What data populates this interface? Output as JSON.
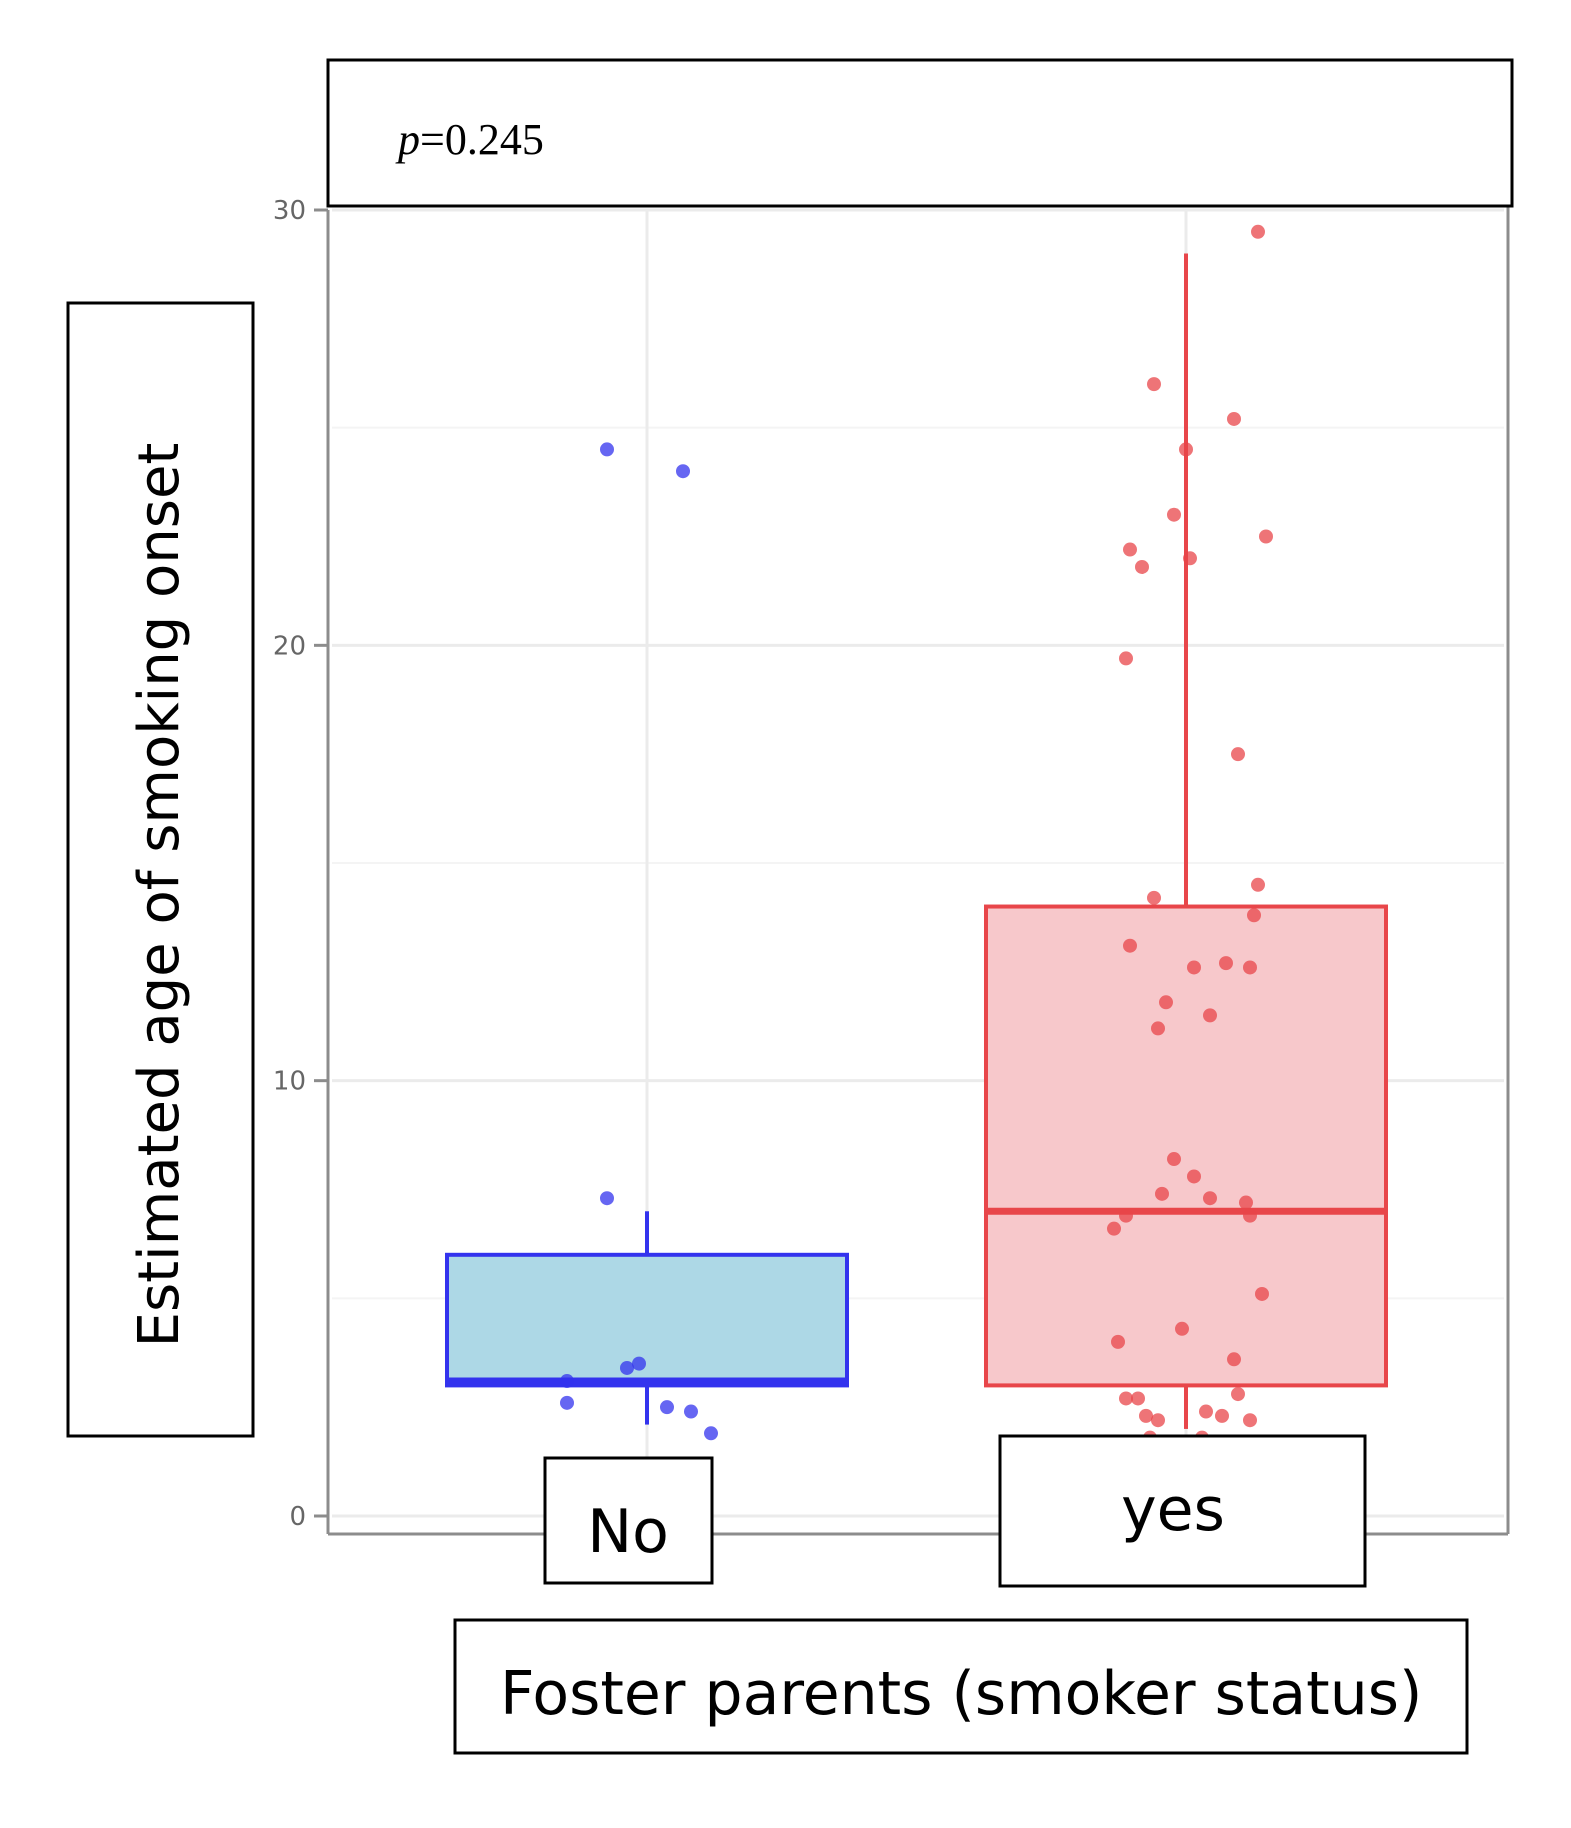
{
  "chart_data": {
    "type": "box",
    "xlabel": "Foster parents (smoker status)",
    "ylabel": "Estimated age of smoking onset",
    "annotation_prefix": "p",
    "annotation_value": "=0.245",
    "ylim": [
      0,
      30
    ],
    "yticks": [
      0,
      10,
      20,
      30
    ],
    "grid": true,
    "categories": [
      "No",
      "yes"
    ],
    "series": [
      {
        "color": "#3333ee",
        "fill": "#add8e6",
        "q1": 3.0,
        "median": 3.1,
        "q3": 6.0,
        "whisker_low": 2.1,
        "whisker_high": 7.0,
        "points": [
          {
            "jitter": -0.1,
            "y": 24.5
          },
          {
            "jitter": 0.09,
            "y": 24.0
          },
          {
            "jitter": -0.1,
            "y": 7.3
          },
          {
            "jitter": -0.2,
            "y": 2.6
          },
          {
            "jitter": -0.05,
            "y": 3.4
          },
          {
            "jitter": -0.02,
            "y": 3.5
          },
          {
            "jitter": 0.05,
            "y": 2.5
          },
          {
            "jitter": 0.11,
            "y": 2.4
          },
          {
            "jitter": 0.16,
            "y": 1.9
          },
          {
            "jitter": -0.2,
            "y": 3.1
          }
        ]
      },
      {
        "color": "#e8464a",
        "fill": "#f7c8cb",
        "q1": 3.0,
        "median": 7.0,
        "q3": 14.0,
        "whisker_low": 2.0,
        "whisker_high": 29.0,
        "points": [
          {
            "jitter": 0.18,
            "y": 29.5
          },
          {
            "jitter": -0.08,
            "y": 26.0
          },
          {
            "jitter": 0.12,
            "y": 25.2
          },
          {
            "jitter": 0.0,
            "y": 24.5
          },
          {
            "jitter": -0.03,
            "y": 23.0
          },
          {
            "jitter": 0.2,
            "y": 22.5
          },
          {
            "jitter": -0.14,
            "y": 22.2
          },
          {
            "jitter": -0.11,
            "y": 21.8
          },
          {
            "jitter": 0.01,
            "y": 22.0
          },
          {
            "jitter": -0.15,
            "y": 19.7
          },
          {
            "jitter": 0.13,
            "y": 17.5
          },
          {
            "jitter": -0.08,
            "y": 14.2
          },
          {
            "jitter": 0.18,
            "y": 14.5
          },
          {
            "jitter": 0.17,
            "y": 13.8
          },
          {
            "jitter": -0.14,
            "y": 13.1
          },
          {
            "jitter": 0.02,
            "y": 12.6
          },
          {
            "jitter": 0.1,
            "y": 12.7
          },
          {
            "jitter": 0.16,
            "y": 12.6
          },
          {
            "jitter": -0.05,
            "y": 11.8
          },
          {
            "jitter": 0.06,
            "y": 11.5
          },
          {
            "jitter": -0.07,
            "y": 11.2
          },
          {
            "jitter": -0.03,
            "y": 8.2
          },
          {
            "jitter": 0.02,
            "y": 7.8
          },
          {
            "jitter": -0.06,
            "y": 7.4
          },
          {
            "jitter": 0.06,
            "y": 7.3
          },
          {
            "jitter": 0.15,
            "y": 7.2
          },
          {
            "jitter": -0.15,
            "y": 6.9
          },
          {
            "jitter": -0.18,
            "y": 6.6
          },
          {
            "jitter": 0.16,
            "y": 6.9
          },
          {
            "jitter": 0.19,
            "y": 5.1
          },
          {
            "jitter": -0.17,
            "y": 4.0
          },
          {
            "jitter": -0.01,
            "y": 4.3
          },
          {
            "jitter": 0.12,
            "y": 3.6
          },
          {
            "jitter": -0.15,
            "y": 2.7
          },
          {
            "jitter": -0.12,
            "y": 2.7
          },
          {
            "jitter": 0.13,
            "y": 2.8
          },
          {
            "jitter": -0.1,
            "y": 2.3
          },
          {
            "jitter": -0.07,
            "y": 2.2
          },
          {
            "jitter": 0.05,
            "y": 2.4
          },
          {
            "jitter": 0.09,
            "y": 2.3
          },
          {
            "jitter": 0.16,
            "y": 2.2
          },
          {
            "jitter": -0.09,
            "y": 1.8
          },
          {
            "jitter": 0.04,
            "y": 1.8
          }
        ]
      }
    ]
  }
}
